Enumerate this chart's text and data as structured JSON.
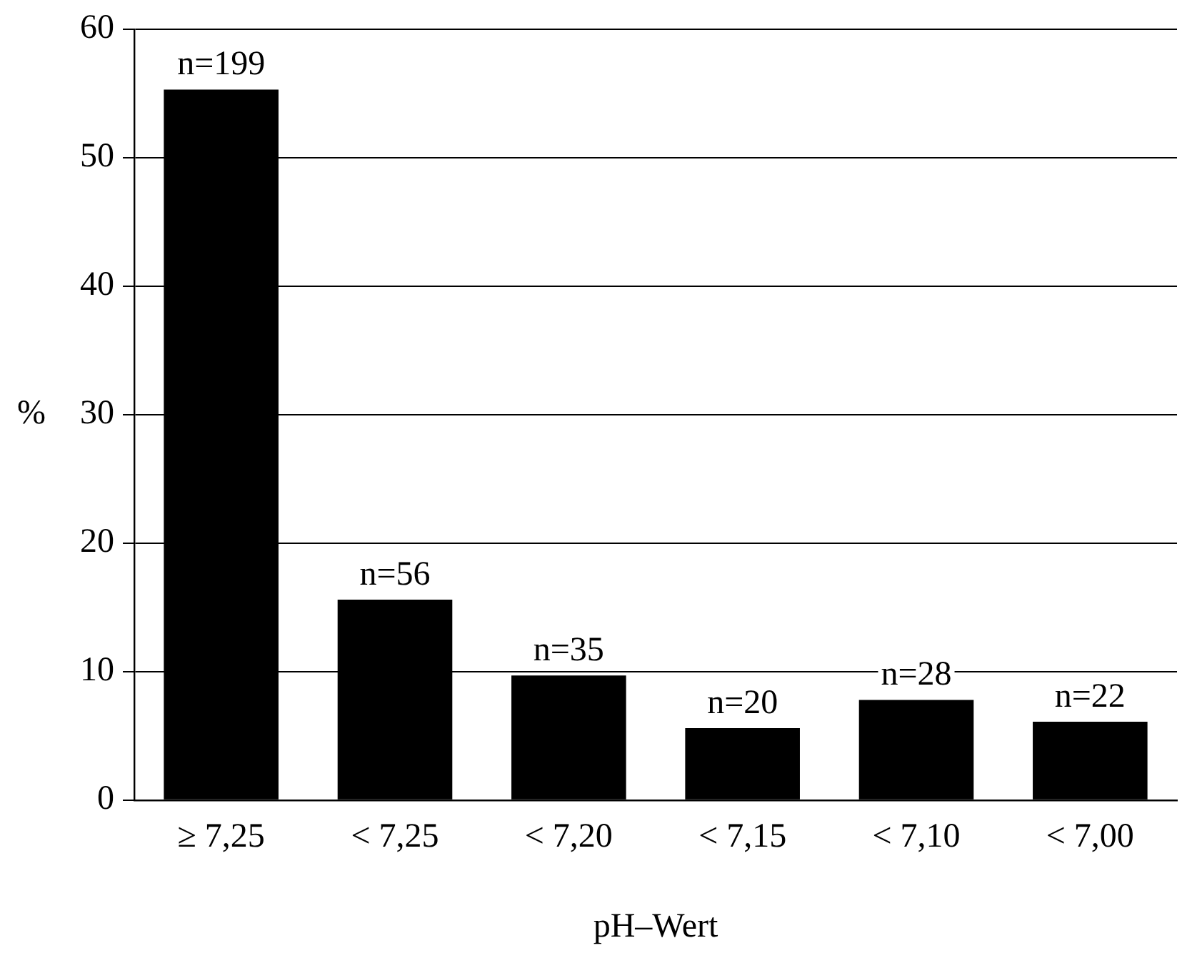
{
  "chart_data": {
    "type": "bar",
    "xlabel": "pH–Wert",
    "ylabel": "%",
    "categories": [
      "≥ 7,25",
      "< 7,25",
      "< 7,20",
      "< 7,15",
      "< 7,10",
      "< 7,00"
    ],
    "values": [
      55.3,
      15.6,
      9.7,
      5.6,
      7.8,
      6.1
    ],
    "annotations": [
      {
        "text": "n=199",
        "x": "≥ 7,25",
        "y": 55.3
      },
      {
        "text": "n=56",
        "x": "< 7,25",
        "y": 15.6
      },
      {
        "text": "n=35",
        "x": "< 7,20",
        "y": 9.7
      },
      {
        "text": "n=20",
        "x": "< 7,15",
        "y": 5.6
      },
      {
        "text": "n=28",
        "x": "< 7,10",
        "y": 7.8
      },
      {
        "text": "n=22",
        "x": "< 7,00",
        "y": 6.1
      }
    ],
    "color": "#000000",
    "ylim": [
      0,
      60
    ],
    "yticks": [
      0,
      10,
      20,
      30,
      40,
      50,
      60
    ],
    "grid": "y",
    "legend": false
  }
}
